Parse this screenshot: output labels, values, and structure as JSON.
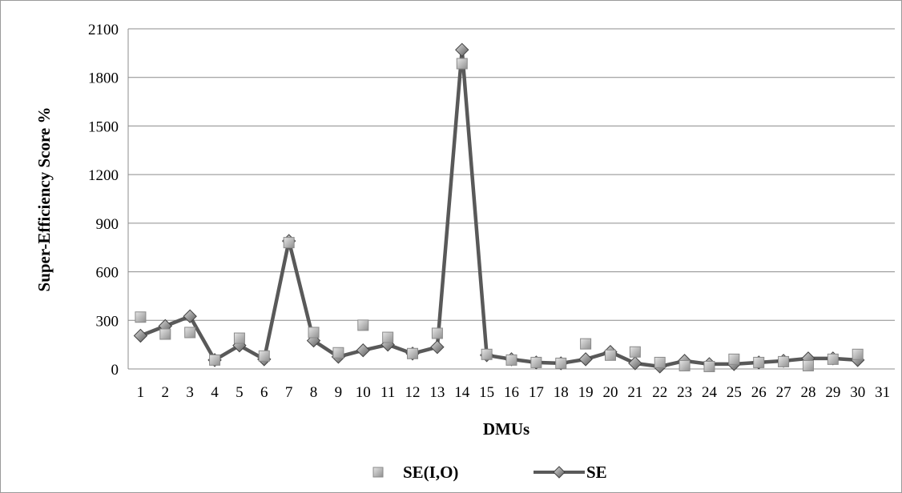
{
  "chart_data": {
    "type": "line",
    "title": "",
    "xlabel": "DMUs",
    "ylabel": "Super-Efficiency Score %",
    "ylim": [
      0,
      2100
    ],
    "yticks": [
      0,
      300,
      600,
      900,
      1200,
      1500,
      1800,
      2100
    ],
    "categories": [
      "1",
      "2",
      "3",
      "4",
      "5",
      "6",
      "7",
      "8",
      "9",
      "10",
      "11",
      "12",
      "13",
      "14",
      "15",
      "16",
      "17",
      "18",
      "19",
      "20",
      "21",
      "22",
      "23",
      "24",
      "25",
      "26",
      "27",
      "28",
      "29",
      "30",
      "31"
    ],
    "grid": true,
    "legend_position": "bottom",
    "series": [
      {
        "name": "SE(I,O)",
        "style": "markers",
        "color": "#b5b5b5",
        "values": [
          320,
          215,
          225,
          55,
          190,
          80,
          780,
          225,
          100,
          270,
          195,
          95,
          220,
          1885,
          90,
          55,
          40,
          35,
          155,
          85,
          105,
          40,
          20,
          15,
          60,
          40,
          45,
          20,
          60,
          90,
          null
        ]
      },
      {
        "name": "SE",
        "style": "line-markers",
        "color": "#595959",
        "values": [
          205,
          265,
          325,
          55,
          145,
          60,
          790,
          175,
          75,
          115,
          150,
          95,
          135,
          1970,
          85,
          60,
          40,
          35,
          60,
          105,
          35,
          15,
          50,
          30,
          30,
          40,
          50,
          65,
          65,
          55,
          null
        ]
      }
    ]
  }
}
